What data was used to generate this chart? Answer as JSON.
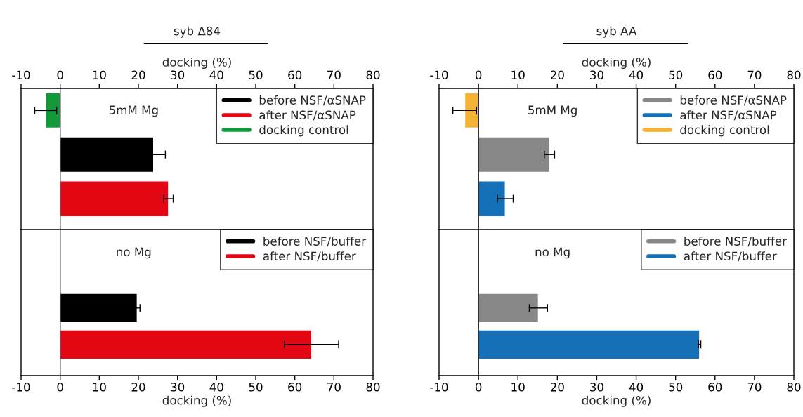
{
  "chart_data": [
    {
      "type": "bar",
      "orientation": "horizontal",
      "stacked": true,
      "title": "syb Δ84",
      "xlabel": "docking (%)",
      "xlim": [
        -10,
        80
      ],
      "xticks": [
        -10,
        0,
        10,
        20,
        30,
        40,
        50,
        60,
        70,
        80
      ],
      "categories": [
        null,
        null,
        null
      ],
      "series": [
        {
          "name": "before NSF/αSNAP",
          "color": "#000000",
          "values": [
            null,
            23.9,
            null
          ],
          "errors": [
            null,
            3.0,
            null
          ]
        },
        {
          "name": "after NSF/αSNAP",
          "color": "#e30613",
          "values": [
            null,
            null,
            27.7
          ],
          "errors": [
            null,
            null,
            1.2
          ]
        },
        {
          "name": "docking control",
          "color": "#12993c",
          "values": [
            -3.7,
            null,
            null
          ],
          "errors": [
            2.8,
            null,
            null
          ]
        }
      ],
      "ref_lines": [
        {
          "axis": "x",
          "value": 0,
          "color": "#000000"
        }
      ],
      "annotations": [
        "5mM Mg"
      ],
      "legend": "top right",
      "grid": false
    },
    {
      "type": "bar",
      "orientation": "horizontal",
      "stacked": true,
      "xlabel": "docking (%)",
      "xlim": [
        -10,
        80
      ],
      "xticks": [
        -10,
        0,
        10,
        20,
        30,
        40,
        50,
        60,
        70,
        80
      ],
      "categories": [
        null,
        null
      ],
      "series": [
        {
          "name": "before NSF/buffer",
          "color": "#000000",
          "values": [
            19.7,
            null
          ],
          "errors": [
            0.7,
            null
          ]
        },
        {
          "name": "after NSF/buffer",
          "color": "#e30613",
          "values": [
            null,
            64.3
          ],
          "errors": [
            null,
            6.9
          ]
        }
      ],
      "ref_lines": [
        {
          "axis": "x",
          "value": 0,
          "color": "#000000"
        }
      ],
      "annotations": [
        "no Mg"
      ],
      "legend": "top right",
      "grid": false
    },
    {
      "type": "bar",
      "orientation": "horizontal",
      "stacked": true,
      "title": "syb AA",
      "xlabel": "docking (%)",
      "xlim": [
        -10,
        80
      ],
      "xticks": [
        -10,
        0,
        10,
        20,
        30,
        40,
        50,
        60,
        70,
        80
      ],
      "categories": [
        null,
        null,
        null
      ],
      "series": [
        {
          "name": "before NSF/αSNAP",
          "color": "#878787",
          "values": [
            null,
            18.0,
            null
          ],
          "errors": [
            null,
            1.3,
            null
          ]
        },
        {
          "name": "after NSF/αSNAP",
          "color": "#1570b8",
          "values": [
            null,
            null,
            6.8
          ],
          "errors": [
            null,
            null,
            2.0
          ]
        },
        {
          "name": "docking control",
          "color": "#f5b335",
          "values": [
            -3.5,
            null,
            null
          ],
          "errors": [
            3.0,
            null,
            null
          ]
        }
      ],
      "ref_lines": [
        {
          "axis": "x",
          "value": 0,
          "color": "#000000"
        }
      ],
      "annotations": [
        "5mM Mg"
      ],
      "legend": "top right",
      "grid": false
    },
    {
      "type": "bar",
      "orientation": "horizontal",
      "stacked": true,
      "xlabel": "docking (%)",
      "xlim": [
        -10,
        80
      ],
      "xticks": [
        -10,
        0,
        10,
        20,
        30,
        40,
        50,
        60,
        70,
        80
      ],
      "categories": [
        null,
        null
      ],
      "series": [
        {
          "name": "before NSF/buffer",
          "color": "#878787",
          "values": [
            15.2,
            null
          ],
          "errors": [
            2.3,
            null
          ]
        },
        {
          "name": "after NSF/buffer",
          "color": "#1570b8",
          "values": [
            null,
            56.1
          ],
          "errors": [
            null,
            0.3
          ]
        }
      ],
      "ref_lines": [
        {
          "axis": "x",
          "value": 0,
          "color": "#000000"
        }
      ],
      "annotations": [
        "no Mg"
      ],
      "legend": "top right",
      "grid": false
    }
  ]
}
